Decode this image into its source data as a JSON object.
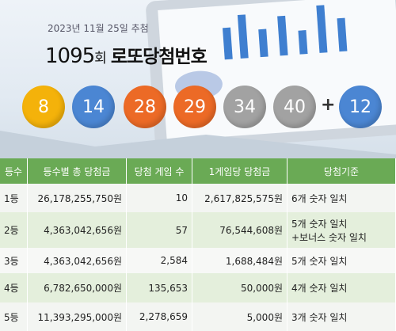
{
  "header": {
    "date": "2023년 11월 25일 추첨",
    "draw_no": "1095",
    "draw_suffix": "회",
    "title": "로또당첨번호"
  },
  "balls": [
    {
      "number": 8,
      "color": "#f4b20a"
    },
    {
      "number": 14,
      "color": "#4b86d3"
    },
    {
      "number": 28,
      "color": "#ec6a26"
    },
    {
      "number": 29,
      "color": "#ec6a26"
    },
    {
      "number": 34,
      "color": "#a2a2a2"
    },
    {
      "number": 40,
      "color": "#a2a2a2"
    }
  ],
  "plus": "+",
  "bonus": {
    "number": 12,
    "color": "#4b86d3"
  },
  "table": {
    "columns": [
      "등수",
      "등수별 총 당첨금",
      "당첨 게임 수",
      "1게임당 당첨금",
      "당첨기준"
    ],
    "rows": [
      [
        "1등",
        "26,178,255,750원",
        "10",
        "2,617,825,575원",
        [
          "6개 숫자 일치"
        ]
      ],
      [
        "2등",
        "4,363,042,656원",
        "57",
        "76,544,608원",
        [
          "5개 숫자 일치",
          "+보너스 숫자 일치"
        ]
      ],
      [
        "3등",
        "4,363,042,656원",
        "2,584",
        "1,688,484원",
        [
          "5개 숫자 일치"
        ]
      ],
      [
        "4등",
        "6,782,650,000원",
        "135,653",
        "50,000원",
        [
          "4개 숫자 일치"
        ]
      ],
      [
        "5등",
        "11,393,295,000원",
        "2,278,659",
        "5,000원",
        [
          "3개 숫자 일치"
        ]
      ]
    ]
  }
}
